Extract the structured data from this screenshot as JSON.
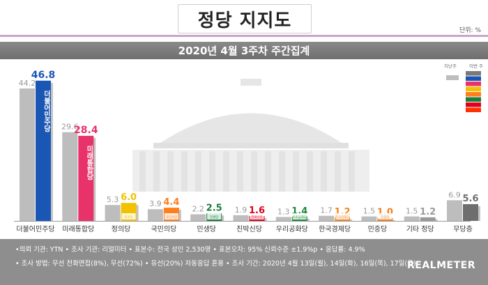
{
  "title": "정당 지지도",
  "unit": "단위: %",
  "subtitle": "2020년 4월 3주차 주간집계",
  "legend": {
    "prev_label": "지난주",
    "this_label": "이번 주",
    "prev_color": "#bdbdbd",
    "this_swatches": [
      "#7a7a7a",
      "#1a57b5",
      "#e8336a",
      "#f2c200",
      "#ff7f1e",
      "#1b7e3f",
      "#e0001b",
      "#ff3300"
    ]
  },
  "chart_data": {
    "type": "bar",
    "categories": [
      "더불어민주당",
      "미래통합당",
      "정의당",
      "국민의당",
      "민생당",
      "친박신당",
      "우리공화당",
      "한국경제당",
      "민중당",
      "기타 정당",
      "무당층"
    ],
    "series": [
      {
        "name": "지난주",
        "values": [
          44.2,
          29.6,
          5.3,
          3.9,
          2.2,
          1.9,
          1.3,
          1.7,
          1.5,
          1.5,
          6.9
        ]
      },
      {
        "name": "이번 주",
        "values": [
          46.8,
          28.4,
          6.0,
          4.4,
          2.5,
          1.6,
          1.4,
          1.2,
          1.0,
          1.2,
          5.6
        ]
      }
    ],
    "colors": [
      "#1a57b5",
      "#e8336a",
      "#f2c200",
      "#ff7f1e",
      "#1b7e3f",
      "#e0001b",
      "#1b8a3a",
      "#f0851d",
      "#f07e1e",
      "#9a9a9a",
      "#6e6e6e"
    ],
    "bar_labels": {
      "0": "더불어민주당",
      "1": "미래통합당"
    },
    "logo_texts": {
      "2": "정의당",
      "3": "국민의당",
      "4": "민생당",
      "5": "친박신당",
      "6": "우리공화당",
      "7": "한국경제당",
      "8": "민중당"
    },
    "ylim": [
      0,
      50
    ],
    "grid": false,
    "legend_position": "top-right"
  },
  "footer": {
    "line1": "•의뢰 기관: YTN • 조사 기관: 리얼미터 • 표본수: 전국 성인 2,530명 • 표본오차: 95% 신뢰수준 ±1.9%p • 응답률: 4.9%",
    "line2": "• 조사 방법: 무선 전화면접(8%), 무선(72%) • 유선(20%) 자동응답 혼용  • 조사 기간: 2020년 4월 13일(월), 14일(화), 16일(목), 17일(금)",
    "logo": "REALMETER"
  }
}
